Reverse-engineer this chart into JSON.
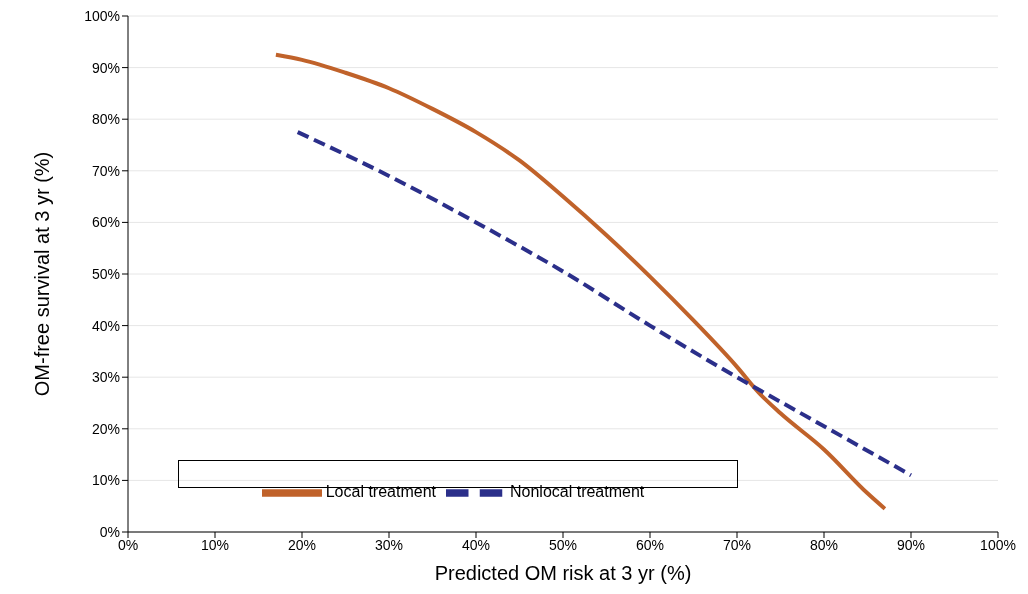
{
  "chart_data": {
    "type": "line",
    "xlabel": "Predicted OM risk at 3 yr (%)",
    "ylabel": "OM-free survival at 3 yr (%)",
    "xlim": [
      0,
      100
    ],
    "ylim": [
      0,
      100
    ],
    "xticks": [
      {
        "value": 0,
        "label": "0%"
      },
      {
        "value": 10,
        "label": "10%"
      },
      {
        "value": 20,
        "label": "20%"
      },
      {
        "value": 30,
        "label": "30%"
      },
      {
        "value": 40,
        "label": "40%"
      },
      {
        "value": 50,
        "label": "50%"
      },
      {
        "value": 60,
        "label": "60%"
      },
      {
        "value": 70,
        "label": "70%"
      },
      {
        "value": 80,
        "label": "80%"
      },
      {
        "value": 90,
        "label": "90%"
      },
      {
        "value": 100,
        "label": "100%"
      }
    ],
    "yticks": [
      {
        "value": 0,
        "label": "0%"
      },
      {
        "value": 10,
        "label": "10%"
      },
      {
        "value": 20,
        "label": "20%"
      },
      {
        "value": 30,
        "label": "30%"
      },
      {
        "value": 40,
        "label": "40%"
      },
      {
        "value": 50,
        "label": "50%"
      },
      {
        "value": 60,
        "label": "60%"
      },
      {
        "value": 70,
        "label": "70%"
      },
      {
        "value": 80,
        "label": "80%"
      },
      {
        "value": 90,
        "label": "90%"
      },
      {
        "value": 100,
        "label": "100%"
      }
    ],
    "grid": "y",
    "legend": "bottom left",
    "marker": "none",
    "series": [
      {
        "name": "Local treatment",
        "color": "#c0622a",
        "line_style": "solid",
        "x": [
          17,
          20,
          25,
          30,
          35,
          40,
          45,
          50,
          55,
          60,
          65,
          70,
          72.5,
          75,
          80,
          85,
          87
        ],
        "values": [
          92.5,
          91.5,
          89,
          86,
          82,
          77.5,
          72,
          65,
          57.5,
          49.5,
          41,
          32,
          27,
          23,
          16,
          7.5,
          4.5
        ]
      },
      {
        "name": "Nonlocal treatment",
        "color": "#2b2f8a",
        "line_style": "dashed",
        "x": [
          19.5,
          30,
          40,
          50,
          60,
          70,
          80,
          90
        ],
        "values": [
          77.5,
          69,
          60,
          50.5,
          40,
          30,
          20.5,
          11
        ]
      }
    ]
  }
}
